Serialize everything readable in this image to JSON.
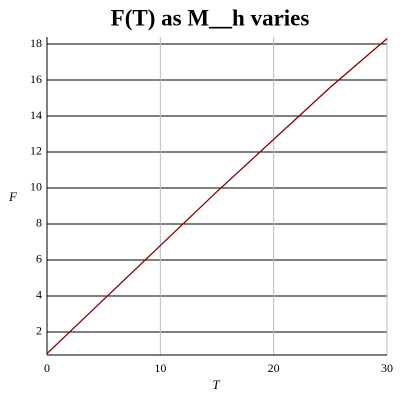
{
  "chart_data": {
    "type": "line",
    "title": "F(T) as M__h varies",
    "x_label": "T",
    "y_label": "F",
    "x": [
      0,
      5,
      10,
      15,
      20,
      25,
      30
    ],
    "series": [
      {
        "color": "#8b0000",
        "values": [
          0.8,
          3.8,
          6.8,
          9.8,
          12.7,
          15.6,
          18.3
        ]
      }
    ],
    "xlim": [
      0,
      30
    ],
    "xticks": [
      0,
      10,
      20,
      30
    ],
    "ylim": [
      0.72,
      18.39
    ],
    "yticks": [
      2,
      4,
      6,
      8,
      10,
      12,
      14,
      16,
      18
    ],
    "grid": true
  }
}
